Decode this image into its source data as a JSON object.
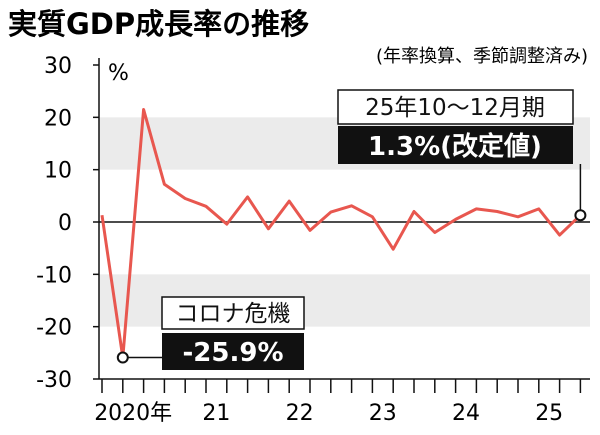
{
  "chart_data": {
    "type": "line",
    "title": "実質GDP成長率の推移",
    "subtitle": "(年率換算、季節調整済み)",
    "unit": "%",
    "ylim": [
      -30,
      30
    ],
    "yticks": [
      30,
      20,
      10,
      0,
      -10,
      -20,
      -30
    ],
    "x_tick_labels": [
      "2020年",
      "21",
      "22",
      "23",
      "24",
      "25"
    ],
    "grid": "alternating horizontal bands",
    "x": [
      "2020Q1",
      "2020Q2",
      "2020Q3",
      "2020Q4",
      "2021Q1",
      "2021Q2",
      "2021Q3",
      "2021Q4",
      "2022Q1",
      "2022Q2",
      "2022Q3",
      "2022Q4",
      "2023Q1",
      "2023Q2",
      "2023Q3",
      "2023Q4",
      "2024Q1",
      "2024Q2",
      "2024Q3",
      "2024Q4",
      "2025Q1",
      "2025Q2",
      "2025Q3",
      "2025Q4"
    ],
    "values": [
      1.3,
      -25.9,
      21.5,
      7.2,
      4.5,
      3.0,
      -0.4,
      4.8,
      -1.3,
      4.0,
      -1.6,
      1.9,
      3.1,
      1.0,
      -5.2,
      2.0,
      -2.0,
      0.5,
      2.5,
      2.0,
      1.0,
      2.5,
      -2.5,
      1.3
    ],
    "line_color": "#e8574f",
    "annotations": [
      {
        "label": "コロナ危機",
        "value": "-25.9%",
        "point": "2020Q2"
      },
      {
        "label": "25年10〜12月期",
        "value": "1.3%(改定値)",
        "point": "2025Q4"
      }
    ]
  }
}
